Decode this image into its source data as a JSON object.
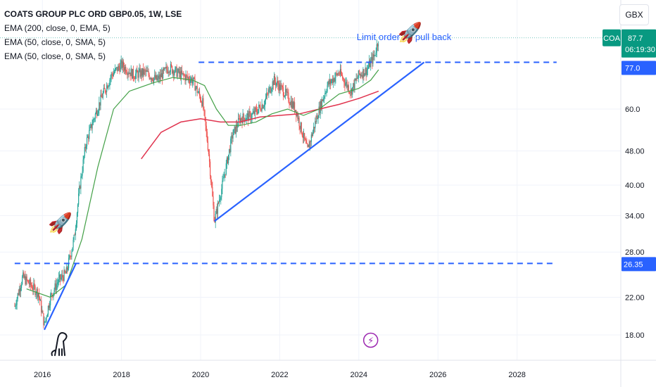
{
  "header": {
    "title": "COATS GROUP PLC ORD GBP0.05, 1W, LSE",
    "indicators": [
      "EMA (200, close, 0, EMA, 5)",
      "EMA (50, close, 0, SMA, 5)",
      "EMA (50, close, 0, SMA, 5)"
    ],
    "currency": "GBX"
  },
  "annotation": {
    "text": "Limit order on pull back",
    "color": "#2962ff"
  },
  "price_badges": {
    "ticker": "COA",
    "price": "87.7",
    "countdown": "06:19:30",
    "badge_color": "#089981",
    "resistance_label": "77.0",
    "support_label": "26.35",
    "label_color": "#2962ff"
  },
  "colors": {
    "up": "#26a69a",
    "down": "#ef5350",
    "ema200": "#e0334e",
    "ema50": "#43a047",
    "trendline": "#2962ff",
    "grid": "#f0f3fa",
    "axis_text": "#131722"
  },
  "icons": [
    "rocket-icon",
    "rocket-icon",
    "lightning-icon",
    "dinosaur-logo-icon"
  ],
  "chart_data": {
    "type": "candlestick",
    "y_scale": "log",
    "ylim": [
      15.5,
      105
    ],
    "xlim": [
      2015.0,
      2029.0
    ],
    "y_ticks": [
      "18.00",
      "22.00",
      "28.00",
      "34.00",
      "40.00",
      "48.00",
      "60.0"
    ],
    "x_ticks": [
      "2016",
      "2018",
      "2020",
      "2022",
      "2024",
      "2026",
      "2028"
    ],
    "price_path": [
      [
        2015.3,
        21.0
      ],
      [
        2015.5,
        24.5
      ],
      [
        2015.7,
        23.5
      ],
      [
        2015.9,
        22.5
      ],
      [
        2016.05,
        19.0
      ],
      [
        2016.2,
        22.0
      ],
      [
        2016.4,
        24.0
      ],
      [
        2016.6,
        25.0
      ],
      [
        2016.8,
        30.0
      ],
      [
        2016.95,
        40.0
      ],
      [
        2017.1,
        50.0
      ],
      [
        2017.3,
        57.0
      ],
      [
        2017.5,
        64.0
      ],
      [
        2017.75,
        72.0
      ],
      [
        2018.0,
        76.0
      ],
      [
        2018.3,
        72.0
      ],
      [
        2018.6,
        73.0
      ],
      [
        2018.9,
        70.0
      ],
      [
        2019.2,
        75.0
      ],
      [
        2019.5,
        72.0
      ],
      [
        2019.8,
        70.0
      ],
      [
        2020.05,
        62.0
      ],
      [
        2020.2,
        48.0
      ],
      [
        2020.35,
        33.0
      ],
      [
        2020.55,
        40.0
      ],
      [
        2020.8,
        52.0
      ],
      [
        2021.0,
        57.0
      ],
      [
        2021.3,
        58.0
      ],
      [
        2021.6,
        62.0
      ],
      [
        2021.85,
        70.0
      ],
      [
        2022.1,
        66.0
      ],
      [
        2022.4,
        60.0
      ],
      [
        2022.7,
        48.0
      ],
      [
        2022.95,
        58.0
      ],
      [
        2023.2,
        68.0
      ],
      [
        2023.5,
        73.0
      ],
      [
        2023.8,
        66.0
      ],
      [
        2024.0,
        72.0
      ],
      [
        2024.2,
        74.0
      ],
      [
        2024.4,
        80.0
      ],
      [
        2024.5,
        87.7
      ]
    ],
    "ema50": [
      [
        2015.6,
        23.0
      ],
      [
        2016.2,
        22.0
      ],
      [
        2016.6,
        23.5
      ],
      [
        2017.0,
        30.0
      ],
      [
        2017.4,
        44.0
      ],
      [
        2017.8,
        60.0
      ],
      [
        2018.2,
        66.0
      ],
      [
        2018.8,
        69.0
      ],
      [
        2019.3,
        71.0
      ],
      [
        2019.8,
        70.0
      ],
      [
        2020.1,
        68.0
      ],
      [
        2020.4,
        60.0
      ],
      [
        2020.7,
        55.0
      ],
      [
        2021.0,
        55.0
      ],
      [
        2021.4,
        56.0
      ],
      [
        2021.8,
        58.5
      ],
      [
        2022.2,
        60.0
      ],
      [
        2022.6,
        58.0
      ],
      [
        2023.0,
        60.0
      ],
      [
        2023.5,
        65.0
      ],
      [
        2024.0,
        67.0
      ],
      [
        2024.3,
        70.0
      ],
      [
        2024.5,
        74.0
      ]
    ],
    "ema200": [
      [
        2018.5,
        46.0
      ],
      [
        2019.0,
        53.0
      ],
      [
        2019.5,
        56.0
      ],
      [
        2020.0,
        57.0
      ],
      [
        2020.5,
        56.0
      ],
      [
        2021.0,
        56.0
      ],
      [
        2021.5,
        57.5
      ],
      [
        2022.0,
        58.0
      ],
      [
        2022.5,
        58.5
      ],
      [
        2023.0,
        60.0
      ],
      [
        2023.5,
        61.5
      ],
      [
        2024.0,
        63.5
      ],
      [
        2024.5,
        66.0
      ]
    ],
    "resistance_line": {
      "price": 77.0,
      "from": 2019.95,
      "to": 2029.0
    },
    "support_line": {
      "price": 26.35,
      "from": 2015.3,
      "to": 2029.0
    },
    "trendlines": [
      {
        "from": [
          2016.05,
          18.5
        ],
        "to": [
          2016.85,
          26.35
        ]
      },
      {
        "from": [
          2020.35,
          33.0
        ],
        "to": [
          2025.65,
          77.0
        ]
      }
    ],
    "markers": [
      {
        "icon": "rocket-icon",
        "x": 2016.45,
        "price": 33.0
      },
      {
        "icon": "rocket-icon",
        "x": 2025.3,
        "price": 91.0
      },
      {
        "icon": "lightning-icon",
        "x": 2024.3,
        "price": 17.5
      }
    ]
  }
}
